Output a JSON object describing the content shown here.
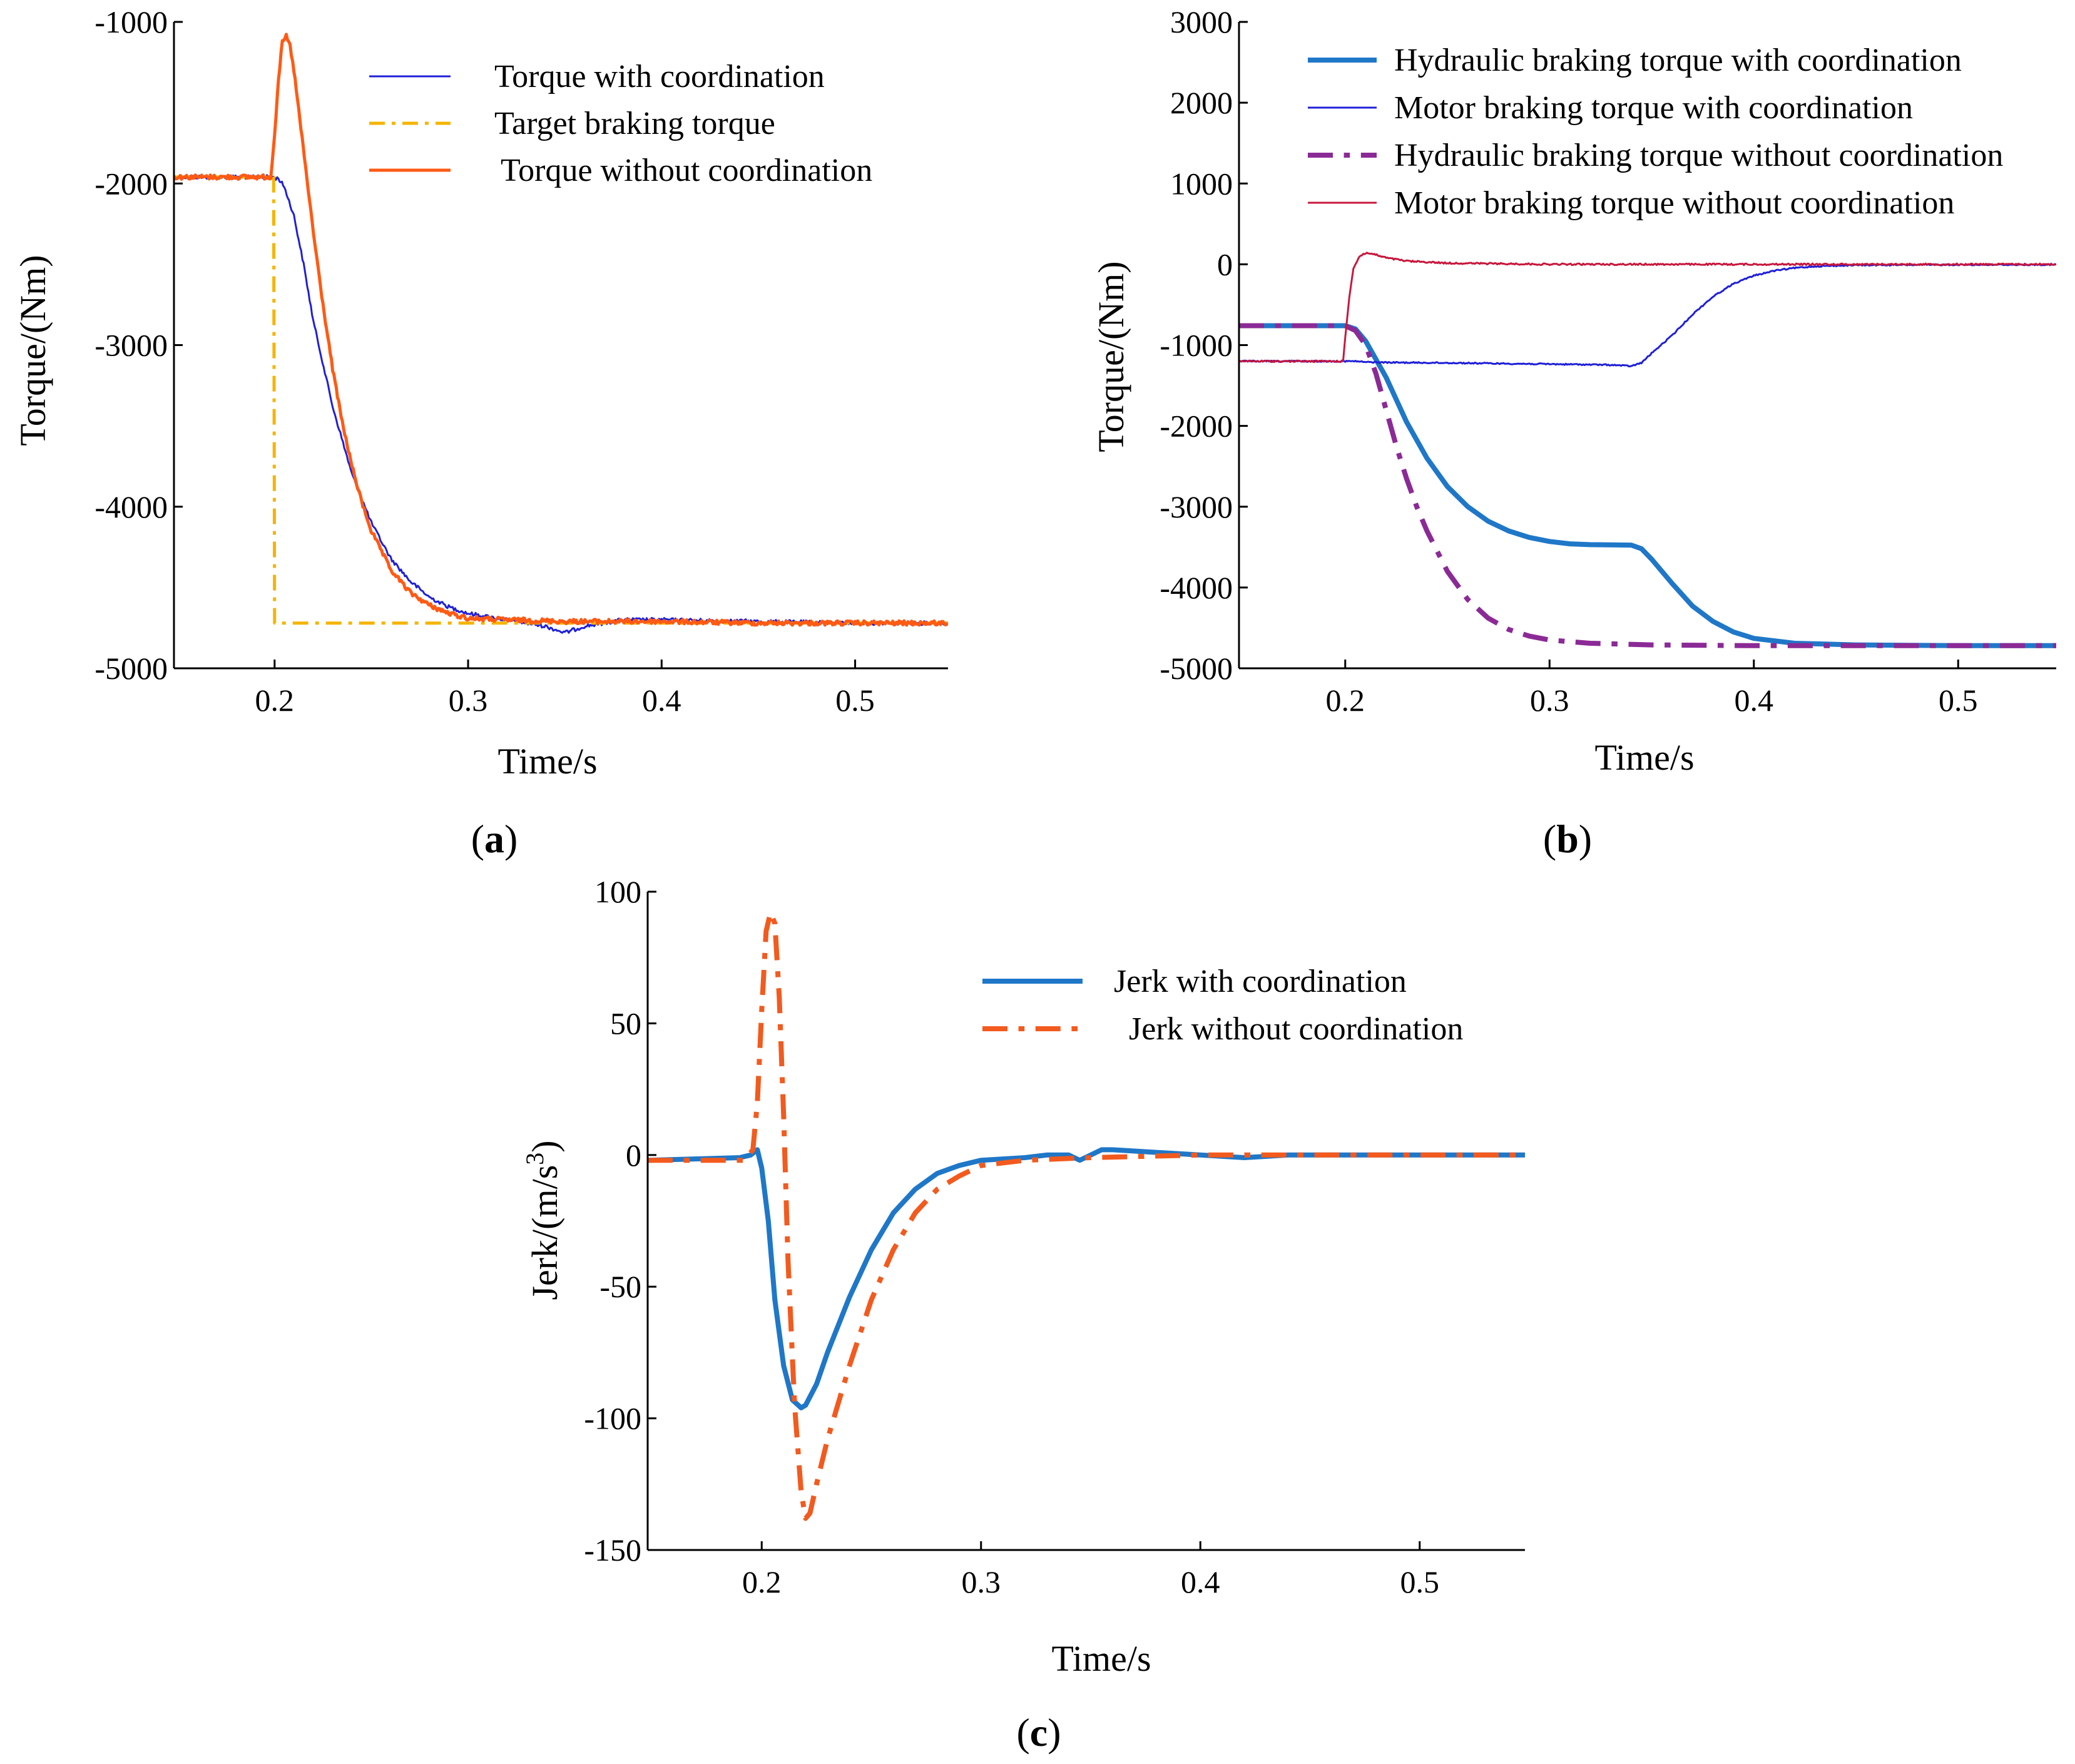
{
  "chart_data": [
    {
      "id": "a",
      "type": "line",
      "panel_label": "a",
      "xlabel": "Time/s",
      "ylabel": "Torque/(Nm)",
      "xlim": [
        0.148,
        0.548
      ],
      "ylim": [
        -5000,
        -1000
      ],
      "xticks": [
        0.2,
        0.3,
        0.4,
        0.5
      ],
      "xtick_labels": [
        "0.2",
        "0.3",
        "0.4",
        "0.5"
      ],
      "yticks": [
        -5000,
        -4000,
        -3000,
        -2000,
        -1000
      ],
      "ytick_labels": [
        "-5000",
        "-4000",
        "-3000",
        "-2000",
        "-1000"
      ],
      "legend_position": "top-right",
      "series": [
        {
          "name": "Torque with coordination",
          "color": "#1f1fd9",
          "style": "solid",
          "weight": "thin",
          "noise": 12,
          "x": [
            0.148,
            0.198,
            0.202,
            0.205,
            0.21,
            0.215,
            0.22,
            0.23,
            0.24,
            0.25,
            0.26,
            0.27,
            0.28,
            0.29,
            0.3,
            0.32,
            0.34,
            0.35,
            0.36,
            0.38,
            0.4,
            0.45,
            0.5,
            0.548
          ],
          "y": [
            -1960,
            -1960,
            -1970,
            -2020,
            -2200,
            -2500,
            -2850,
            -3380,
            -3800,
            -4100,
            -4320,
            -4460,
            -4560,
            -4620,
            -4660,
            -4700,
            -4740,
            -4780,
            -4740,
            -4700,
            -4700,
            -4710,
            -4720,
            -4720
          ]
        },
        {
          "name": "Target braking torque",
          "color": "#f5b400",
          "style": "dashdot",
          "weight": "medium",
          "noise": 0,
          "x": [
            0.148,
            0.1995,
            0.2,
            0.548
          ],
          "y": [
            -1960,
            -1960,
            -4720,
            -4720
          ]
        },
        {
          "name": "Torque without coordination",
          "color": "#ff5a14",
          "style": "solid",
          "weight": "medium",
          "noise": 14,
          "x": [
            0.148,
            0.198,
            0.2,
            0.202,
            0.204,
            0.206,
            0.208,
            0.21,
            0.213,
            0.216,
            0.22,
            0.225,
            0.23,
            0.235,
            0.24,
            0.245,
            0.25,
            0.26,
            0.27,
            0.28,
            0.29,
            0.3,
            0.32,
            0.35,
            0.4,
            0.45,
            0.5,
            0.548
          ],
          "y": [
            -1960,
            -1960,
            -1700,
            -1350,
            -1130,
            -1090,
            -1150,
            -1300,
            -1600,
            -1900,
            -2300,
            -2750,
            -3150,
            -3480,
            -3750,
            -3970,
            -4150,
            -4390,
            -4530,
            -4610,
            -4660,
            -4690,
            -4700,
            -4710,
            -4710,
            -4720,
            -4720,
            -4720
          ]
        }
      ]
    },
    {
      "id": "b",
      "type": "line",
      "panel_label": "b",
      "xlabel": "Time/s",
      "ylabel": "Torque/(Nm)",
      "xlim": [
        0.148,
        0.548
      ],
      "ylim": [
        -5000,
        3000
      ],
      "xticks": [
        0.2,
        0.3,
        0.4,
        0.5
      ],
      "xtick_labels": [
        "0.2",
        "0.3",
        "0.4",
        "0.5"
      ],
      "yticks": [
        -5000,
        -4000,
        -3000,
        -2000,
        -1000,
        0,
        1000,
        2000,
        3000
      ],
      "ytick_labels": [
        "-5000",
        "-4000",
        "-3000",
        "-2000",
        "-1000",
        "0",
        "1000",
        "2000",
        "3000"
      ],
      "legend_position": "top-right",
      "series": [
        {
          "name": "Hydraulic braking torque with coordination",
          "color": "#1f77c8",
          "style": "solid",
          "weight": "thick",
          "noise": 0,
          "x": [
            0.148,
            0.2,
            0.205,
            0.21,
            0.22,
            0.23,
            0.24,
            0.25,
            0.26,
            0.27,
            0.28,
            0.29,
            0.3,
            0.31,
            0.32,
            0.34,
            0.345,
            0.35,
            0.36,
            0.37,
            0.38,
            0.39,
            0.4,
            0.42,
            0.45,
            0.5,
            0.548
          ],
          "y": [
            -760,
            -760,
            -800,
            -950,
            -1400,
            -1950,
            -2400,
            -2750,
            -3000,
            -3180,
            -3300,
            -3380,
            -3430,
            -3460,
            -3470,
            -3475,
            -3520,
            -3650,
            -3950,
            -4230,
            -4420,
            -4550,
            -4630,
            -4690,
            -4710,
            -4720,
            -4720
          ]
        },
        {
          "name": "Motor braking torque with coordination",
          "color": "#1f1fd9",
          "style": "solid",
          "weight": "thin",
          "noise": 8,
          "x": [
            0.148,
            0.2,
            0.205,
            0.21,
            0.22,
            0.25,
            0.3,
            0.33,
            0.34,
            0.345,
            0.35,
            0.36,
            0.37,
            0.38,
            0.39,
            0.4,
            0.41,
            0.42,
            0.43,
            0.45,
            0.5,
            0.548
          ],
          "y": [
            -1200,
            -1200,
            -1200,
            -1210,
            -1215,
            -1220,
            -1235,
            -1245,
            -1260,
            -1220,
            -1100,
            -880,
            -620,
            -400,
            -240,
            -140,
            -80,
            -45,
            -25,
            -10,
            -5,
            -5
          ]
        },
        {
          "name": "Hydraulic braking torque without coordination",
          "color": "#8b2a96",
          "style": "dashdot",
          "weight": "thick",
          "noise": 0,
          "x": [
            0.148,
            0.2,
            0.205,
            0.21,
            0.215,
            0.22,
            0.225,
            0.23,
            0.235,
            0.24,
            0.25,
            0.26,
            0.27,
            0.28,
            0.29,
            0.3,
            0.32,
            0.35,
            0.4,
            0.45,
            0.5,
            0.548
          ],
          "y": [
            -760,
            -760,
            -820,
            -1000,
            -1350,
            -1800,
            -2250,
            -2650,
            -3000,
            -3300,
            -3800,
            -4150,
            -4380,
            -4520,
            -4600,
            -4650,
            -4690,
            -4710,
            -4720,
            -4720,
            -4720,
            -4720
          ]
        },
        {
          "name": "Motor braking torque without coordination",
          "color": "#c8163c",
          "style": "solid",
          "weight": "thin",
          "noise": 10,
          "x": [
            0.148,
            0.199,
            0.2,
            0.202,
            0.204,
            0.207,
            0.21,
            0.213,
            0.216,
            0.22,
            0.23,
            0.25,
            0.3,
            0.35,
            0.4,
            0.45,
            0.5,
            0.548
          ],
          "y": [
            -1200,
            -1200,
            -900,
            -400,
            -50,
            100,
            140,
            130,
            110,
            80,
            40,
            15,
            0,
            0,
            0,
            0,
            0,
            0
          ]
        }
      ]
    },
    {
      "id": "c",
      "type": "line",
      "panel_label": "c",
      "xlabel": "Time/s",
      "ylabel": "Jerk/(m/s",
      "ylabel_superscript": "3",
      "ylabel_tail": ")",
      "xlim": [
        0.148,
        0.548
      ],
      "ylim": [
        -150,
        100
      ],
      "xticks": [
        0.2,
        0.3,
        0.4,
        0.5
      ],
      "xtick_labels": [
        "0.2",
        "0.3",
        "0.4",
        "0.5"
      ],
      "yticks": [
        -150,
        -100,
        -50,
        0,
        50,
        100
      ],
      "ytick_labels": [
        "-150",
        "-100",
        "-50",
        "0",
        "50",
        "100"
      ],
      "legend_position": "top-right",
      "series": [
        {
          "name": "Jerk with coordination",
          "color": "#1f77c8",
          "style": "solid",
          "weight": "thick",
          "noise": 0,
          "x": [
            0.148,
            0.19,
            0.195,
            0.198,
            0.2,
            0.203,
            0.206,
            0.21,
            0.214,
            0.218,
            0.22,
            0.225,
            0.23,
            0.24,
            0.25,
            0.26,
            0.27,
            0.28,
            0.29,
            0.3,
            0.32,
            0.33,
            0.34,
            0.345,
            0.35,
            0.355,
            0.36,
            0.38,
            0.4,
            0.42,
            0.44,
            0.45,
            0.5,
            0.548
          ],
          "y": [
            -2,
            -1,
            0,
            2,
            -5,
            -25,
            -55,
            -80,
            -93,
            -96,
            -95,
            -87,
            -75,
            -54,
            -36,
            -22,
            -13,
            -7,
            -4,
            -2,
            -1,
            0,
            0,
            -2,
            0,
            2,
            2,
            1,
            0,
            -1,
            0,
            0,
            0,
            0
          ]
        },
        {
          "name": "Jerk without coordination",
          "color": "#f25a1e",
          "style": "dashdot",
          "weight": "thick",
          "noise": 0,
          "x": [
            0.148,
            0.192,
            0.196,
            0.198,
            0.2,
            0.202,
            0.204,
            0.206,
            0.208,
            0.21,
            0.212,
            0.215,
            0.218,
            0.22,
            0.222,
            0.225,
            0.23,
            0.24,
            0.25,
            0.26,
            0.27,
            0.28,
            0.29,
            0.3,
            0.32,
            0.35,
            0.4,
            0.45,
            0.5,
            0.548
          ],
          "y": [
            -2,
            -2,
            2,
            20,
            55,
            85,
            92,
            88,
            60,
            15,
            -40,
            -95,
            -128,
            -138,
            -136,
            -125,
            -108,
            -80,
            -55,
            -36,
            -22,
            -13,
            -8,
            -4,
            -2,
            -1,
            0,
            0,
            0,
            0
          ]
        }
      ]
    }
  ]
}
